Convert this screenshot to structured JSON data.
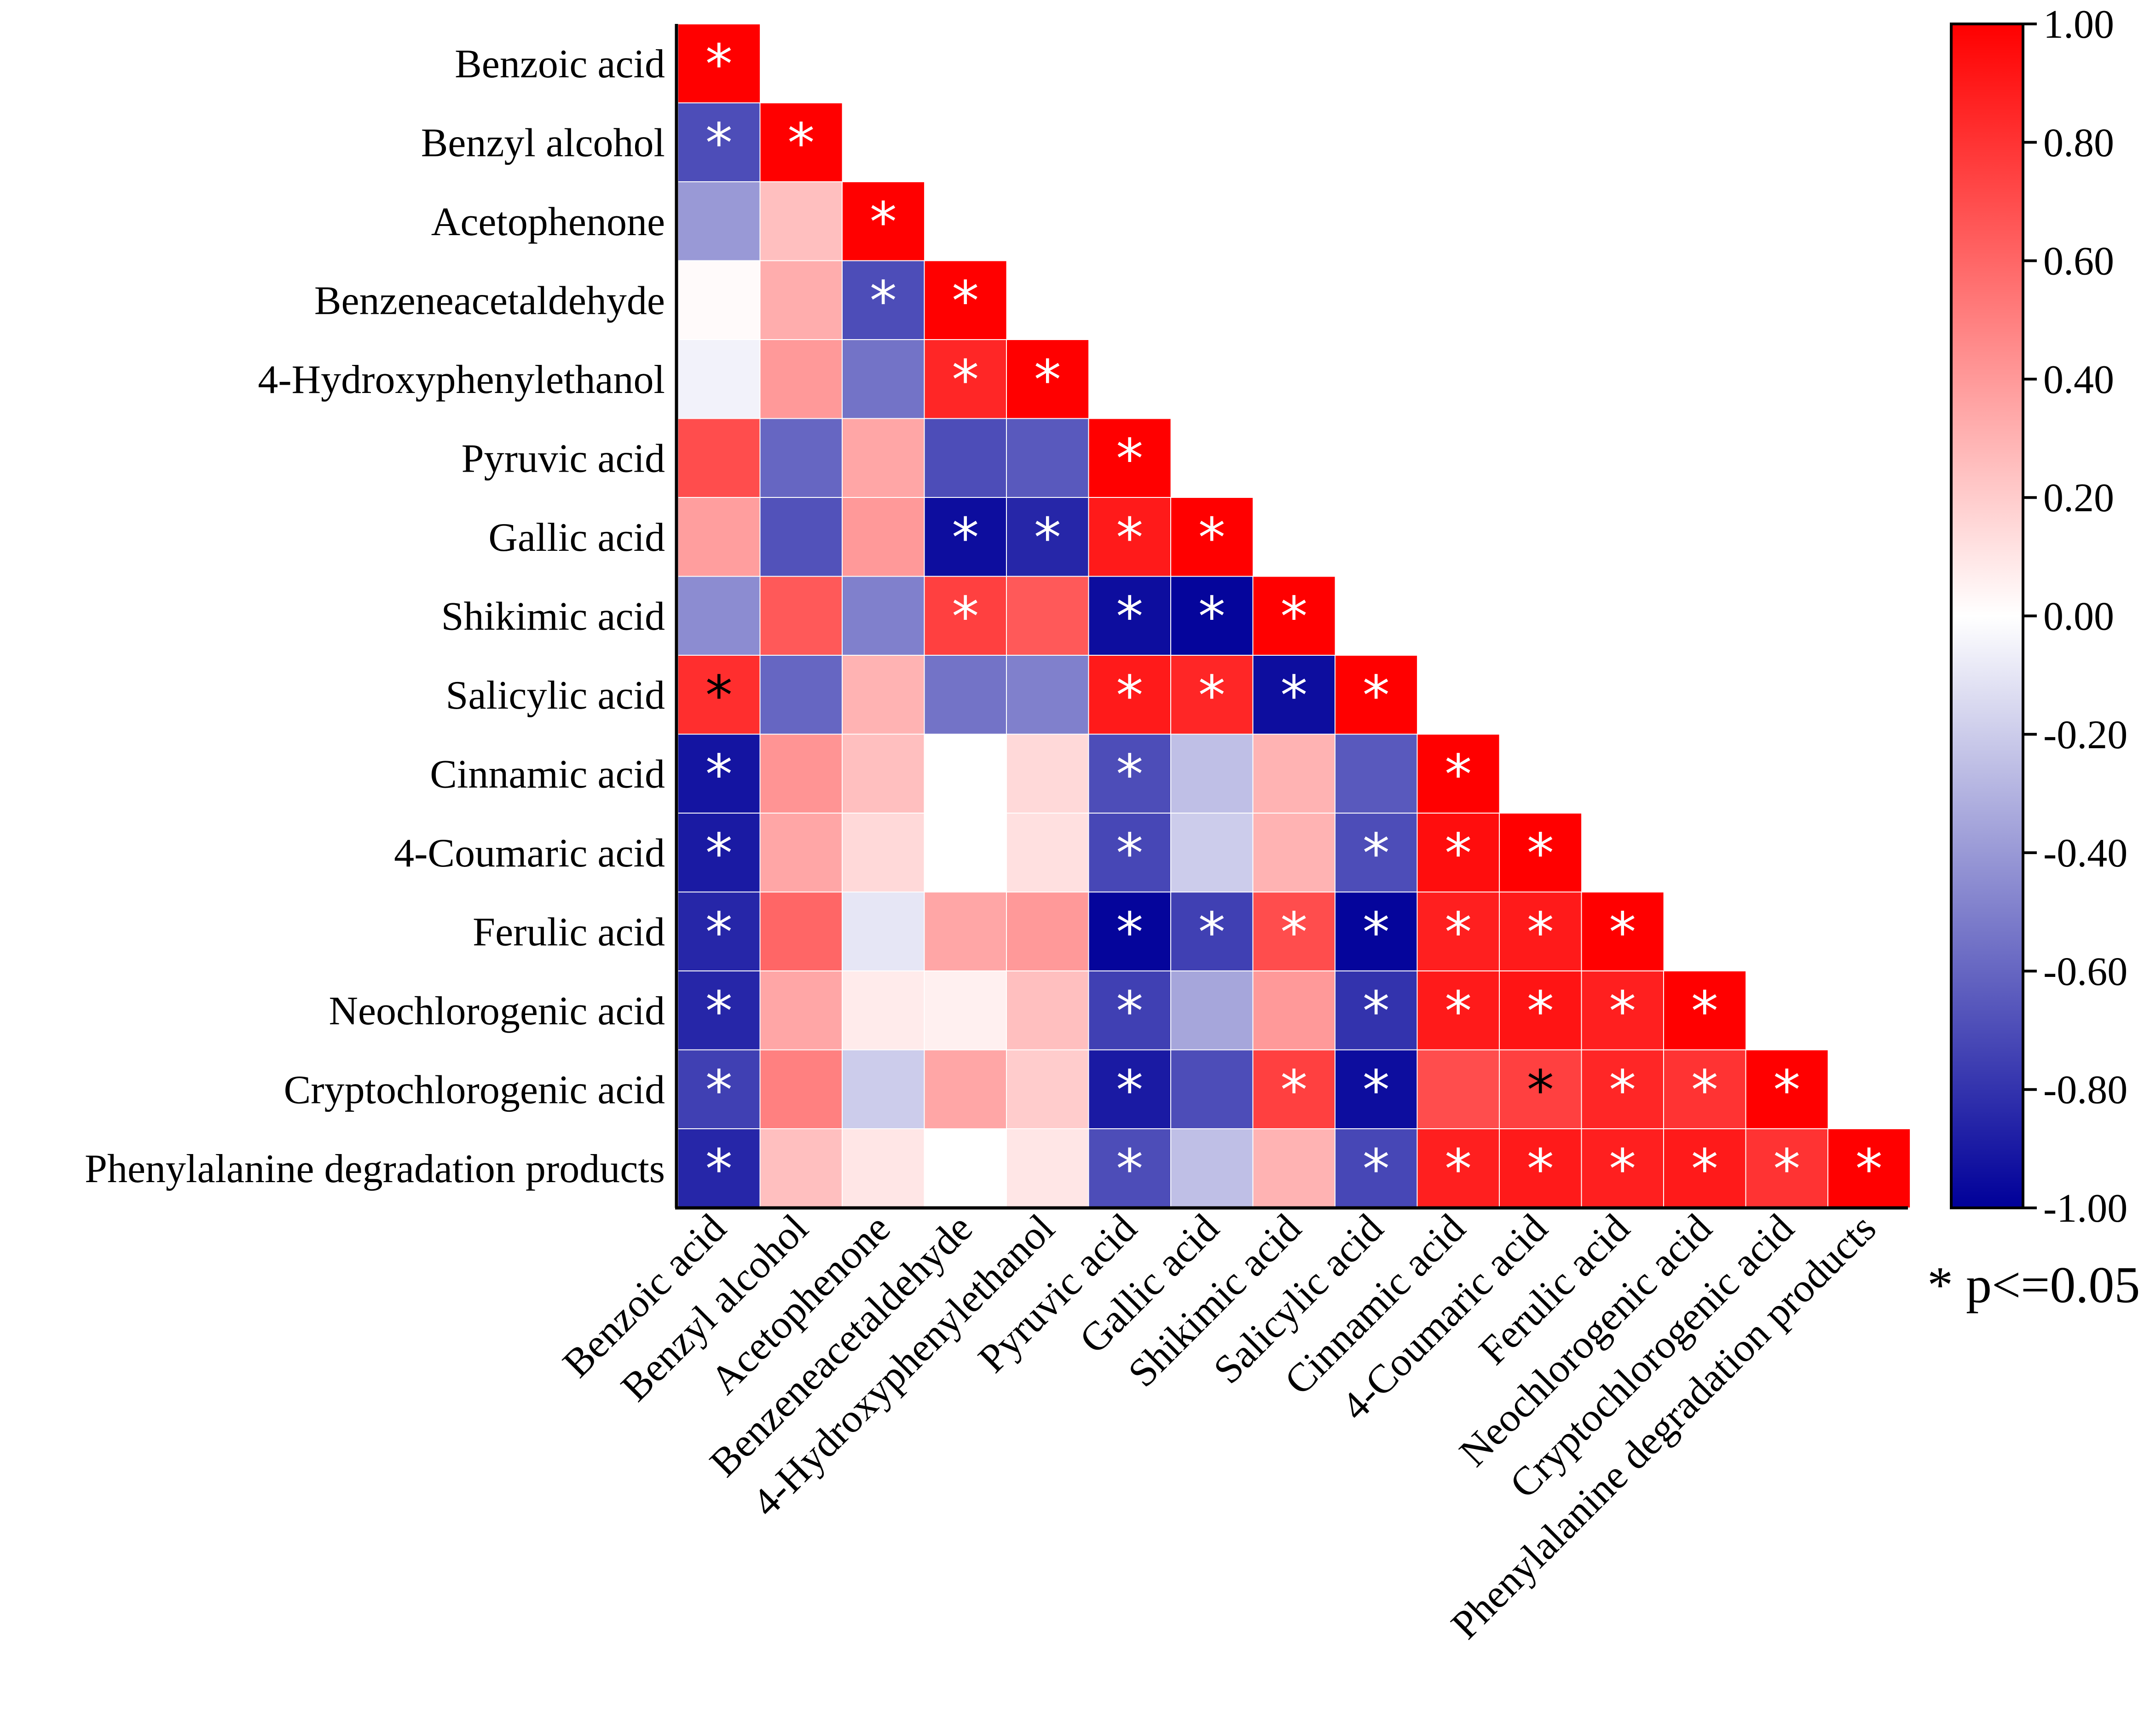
{
  "chart_data": {
    "type": "heatmap",
    "layout": "lower-triangular correlation matrix",
    "variables": [
      "Benzoic acid",
      "Benzyl alcohol",
      "Acetophenone",
      "Benzeneacetaldehyde",
      "4-Hydroxyphenylethanol",
      "Pyruvic acid",
      "Gallic acid",
      "Shikimic acid",
      "Salicylic acid",
      "Cinnamic acid",
      "4-Coumaric acid",
      "Ferulic acid",
      "Neochlorogenic acid",
      "Cryptochlorogenic acid",
      "Phenylalanine degradation products"
    ],
    "matrix": [
      [
        1.0
      ],
      [
        -0.7,
        1.0
      ],
      [
        -0.4,
        0.25,
        1.0
      ],
      [
        0.02,
        0.32,
        -0.7,
        1.0
      ],
      [
        -0.05,
        0.4,
        -0.55,
        0.85,
        1.0
      ],
      [
        0.7,
        -0.6,
        0.35,
        -0.7,
        -0.65,
        1.0
      ],
      [
        0.38,
        -0.68,
        0.4,
        -0.95,
        -0.85,
        0.9,
        1.0
      ],
      [
        -0.45,
        0.65,
        -0.5,
        0.75,
        0.65,
        -0.95,
        -0.98,
        1.0
      ],
      [
        0.82,
        -0.6,
        0.3,
        -0.55,
        -0.5,
        0.9,
        0.85,
        -0.95,
        1.0
      ],
      [
        -0.92,
        0.42,
        0.25,
        0.0,
        0.15,
        -0.7,
        -0.25,
        0.3,
        -0.65,
        1.0
      ],
      [
        -0.9,
        0.35,
        0.15,
        0.0,
        0.12,
        -0.72,
        -0.2,
        0.3,
        -0.7,
        0.95,
        1.0
      ],
      [
        -0.85,
        0.6,
        -0.1,
        0.35,
        0.4,
        -0.98,
        -0.75,
        0.7,
        -0.98,
        0.88,
        0.9,
        1.0
      ],
      [
        -0.85,
        0.35,
        0.08,
        0.06,
        0.25,
        -0.75,
        -0.35,
        0.4,
        -0.8,
        0.9,
        0.92,
        0.88,
        1.0
      ],
      [
        -0.75,
        0.5,
        -0.2,
        0.35,
        0.2,
        -0.9,
        -0.7,
        0.75,
        -0.95,
        0.7,
        0.75,
        0.85,
        0.8,
        1.0
      ],
      [
        -0.85,
        0.25,
        0.1,
        0.0,
        0.1,
        -0.7,
        -0.25,
        0.3,
        -0.72,
        0.88,
        0.9,
        0.88,
        0.9,
        0.8,
        1.0
      ]
    ],
    "significant": [
      [
        1
      ],
      [
        1,
        1
      ],
      [
        0,
        0,
        1
      ],
      [
        0,
        0,
        1,
        1
      ],
      [
        0,
        0,
        0,
        1,
        1
      ],
      [
        0,
        0,
        0,
        0,
        0,
        1
      ],
      [
        0,
        0,
        0,
        1,
        1,
        1,
        1
      ],
      [
        0,
        0,
        0,
        1,
        0,
        1,
        1,
        1
      ],
      [
        1,
        0,
        0,
        0,
        0,
        1,
        1,
        1,
        1
      ],
      [
        1,
        0,
        0,
        0,
        0,
        1,
        0,
        0,
        0,
        1
      ],
      [
        1,
        0,
        0,
        0,
        0,
        1,
        0,
        0,
        1,
        1,
        1
      ],
      [
        1,
        0,
        0,
        0,
        0,
        1,
        1,
        1,
        1,
        1,
        1,
        1
      ],
      [
        1,
        0,
        0,
        0,
        0,
        1,
        0,
        0,
        1,
        1,
        1,
        1,
        1
      ],
      [
        1,
        0,
        0,
        0,
        0,
        1,
        0,
        1,
        1,
        0,
        1,
        1,
        1,
        1
      ],
      [
        1,
        0,
        0,
        0,
        0,
        1,
        0,
        0,
        1,
        1,
        1,
        1,
        1,
        1,
        1
      ]
    ],
    "significance_symbol": "*",
    "significance_note": "* p<=0.05",
    "colorbar": {
      "min": -1.0,
      "max": 1.0,
      "colors": {
        "low": "#000099",
        "mid": "#ffffff",
        "high": "#ff0000"
      },
      "ticks": [
        "1.00",
        "0.80",
        "0.60",
        "0.40",
        "0.20",
        "0.00",
        "-0.20",
        "-0.40",
        "-0.60",
        "-0.80",
        "-1.00"
      ]
    }
  }
}
